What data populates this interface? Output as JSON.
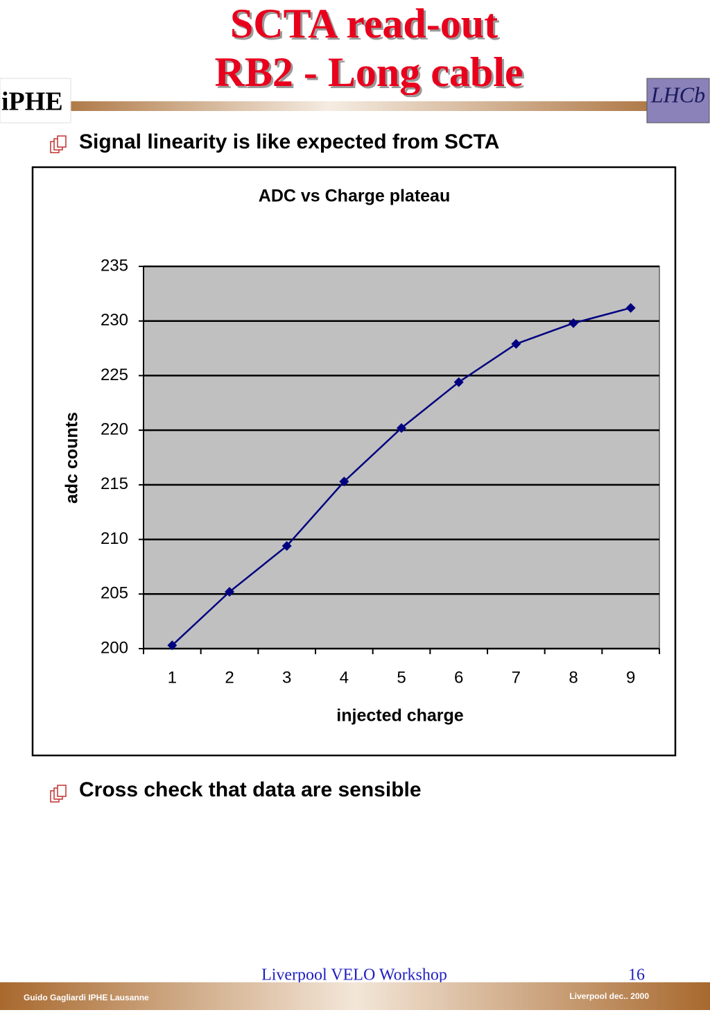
{
  "header": {
    "title_line1": "SCTA read-out",
    "title_line2": "RB2 - Long cable",
    "logo_left": "iPHE",
    "logo_right": "LHCb"
  },
  "bullets": [
    "Signal linearity is like expected from SCTA",
    "Cross check that data are sensible"
  ],
  "chart_data": {
    "type": "line",
    "title": "ADC vs Charge plateau",
    "x_label": "injected charge",
    "y_label": "adc counts",
    "categories": [
      "1",
      "2",
      "3",
      "4",
      "5",
      "6",
      "7",
      "8",
      "9"
    ],
    "series": [
      {
        "name": "adc counts",
        "color": "#000080",
        "values": [
          200.3,
          205.2,
          209.4,
          215.3,
          220.2,
          224.4,
          227.9,
          229.8,
          231.2
        ]
      }
    ],
    "ylim": [
      200,
      235
    ],
    "yticks": [
      200,
      205,
      210,
      215,
      220,
      225,
      230,
      235
    ],
    "grid": true,
    "plot_background": "#c0c0c0"
  },
  "footer": {
    "event": "Liverpool VELO Workshop",
    "page": "16",
    "author": "Guido Gagliardi  IPHE Lausanne",
    "date": "Liverpool dec.. 2000"
  }
}
